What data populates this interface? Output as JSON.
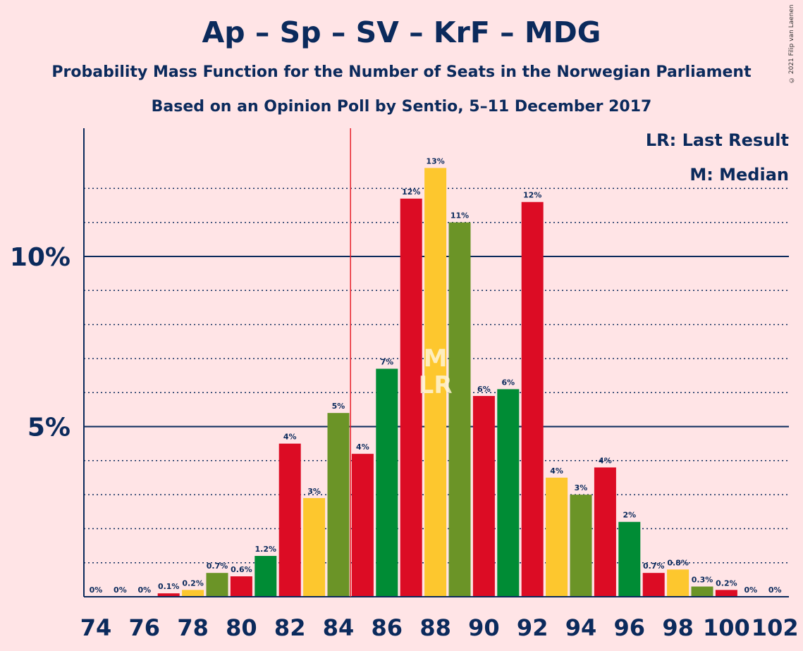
{
  "title": "Ap – Sp – SV – KrF – MDG",
  "subtitle1": "Probability Mass Function for the Number of Seats in the Norwegian Parliament",
  "subtitle2": "Based on an Opinion Poll by Sentio, 5–11 December 2017",
  "copyright": "© 2021 Filip van Laenen",
  "legend": {
    "lr": "LR: Last Result",
    "m": "M: Median"
  },
  "colors": {
    "background": "#FFE4E6",
    "text": "#0B2A5C",
    "red": "#DC0C24",
    "yellow": "#FDC72E",
    "olive": "#6B9427",
    "green": "#008C35",
    "lastResultLine": "#E8202A"
  },
  "chart_data": {
    "type": "bar",
    "ylim": [
      0,
      13.8
    ],
    "major_ticks": [
      5,
      10
    ],
    "major_tick_labels": [
      "5%",
      "10%"
    ],
    "minor_gridlines": [
      1,
      2,
      3,
      4,
      6,
      7,
      8,
      9,
      11,
      12
    ],
    "x_tick_labels": [
      "74",
      "76",
      "78",
      "80",
      "82",
      "84",
      "86",
      "88",
      "90",
      "92",
      "94",
      "96",
      "98",
      "100",
      "102"
    ],
    "last_result_seat": 85,
    "median_seat": 88,
    "median_label": "M",
    "last_result_label": "LR",
    "bars": [
      {
        "seat": 74,
        "value": 0,
        "label": "0%",
        "color": "red"
      },
      {
        "seat": 75,
        "value": 0,
        "label": "0%",
        "color": "yellow"
      },
      {
        "seat": 76,
        "value": 0,
        "label": "0%",
        "color": "olive"
      },
      {
        "seat": 77,
        "value": 0.1,
        "label": "0.1%",
        "color": "red"
      },
      {
        "seat": 78,
        "value": 0.2,
        "label": "0.2%",
        "color": "yellow"
      },
      {
        "seat": 79,
        "value": 0.7,
        "label": "0.7%",
        "color": "olive"
      },
      {
        "seat": 80,
        "value": 0.6,
        "label": "0.6%",
        "color": "red"
      },
      {
        "seat": 81,
        "value": 1.2,
        "label": "1.2%",
        "color": "green"
      },
      {
        "seat": 82,
        "value": 4.5,
        "label": "4%",
        "color": "red"
      },
      {
        "seat": 83,
        "value": 2.9,
        "label": "3%",
        "color": "yellow"
      },
      {
        "seat": 84,
        "value": 5.4,
        "label": "5%",
        "color": "olive"
      },
      {
        "seat": 85,
        "value": 4.2,
        "label": "4%",
        "color": "red"
      },
      {
        "seat": 86,
        "value": 6.7,
        "label": "7%",
        "color": "green"
      },
      {
        "seat": 87,
        "value": 11.7,
        "label": "12%",
        "color": "red"
      },
      {
        "seat": 88,
        "value": 12.6,
        "label": "13%",
        "color": "yellow"
      },
      {
        "seat": 89,
        "value": 11.0,
        "label": "11%",
        "color": "olive"
      },
      {
        "seat": 90,
        "value": 5.9,
        "label": "6%",
        "color": "red"
      },
      {
        "seat": 91,
        "value": 6.1,
        "label": "6%",
        "color": "green"
      },
      {
        "seat": 92,
        "value": 11.6,
        "label": "12%",
        "color": "red"
      },
      {
        "seat": 93,
        "value": 3.5,
        "label": "4%",
        "color": "yellow"
      },
      {
        "seat": 94,
        "value": 3.0,
        "label": "3%",
        "color": "olive"
      },
      {
        "seat": 95,
        "value": 3.8,
        "label": "4%",
        "color": "red"
      },
      {
        "seat": 96,
        "value": 2.2,
        "label": "2%",
        "color": "green"
      },
      {
        "seat": 97,
        "value": 0.7,
        "label": "0.7%",
        "color": "red"
      },
      {
        "seat": 98,
        "value": 0.8,
        "label": "0.8%",
        "color": "yellow"
      },
      {
        "seat": 99,
        "value": 0.3,
        "label": "0.3%",
        "color": "olive"
      },
      {
        "seat": 100,
        "value": 0.2,
        "label": "0.2%",
        "color": "red"
      },
      {
        "seat": 101,
        "value": 0,
        "label": "0%",
        "color": "green"
      },
      {
        "seat": 102,
        "value": 0,
        "label": "0%",
        "color": "red"
      }
    ]
  }
}
